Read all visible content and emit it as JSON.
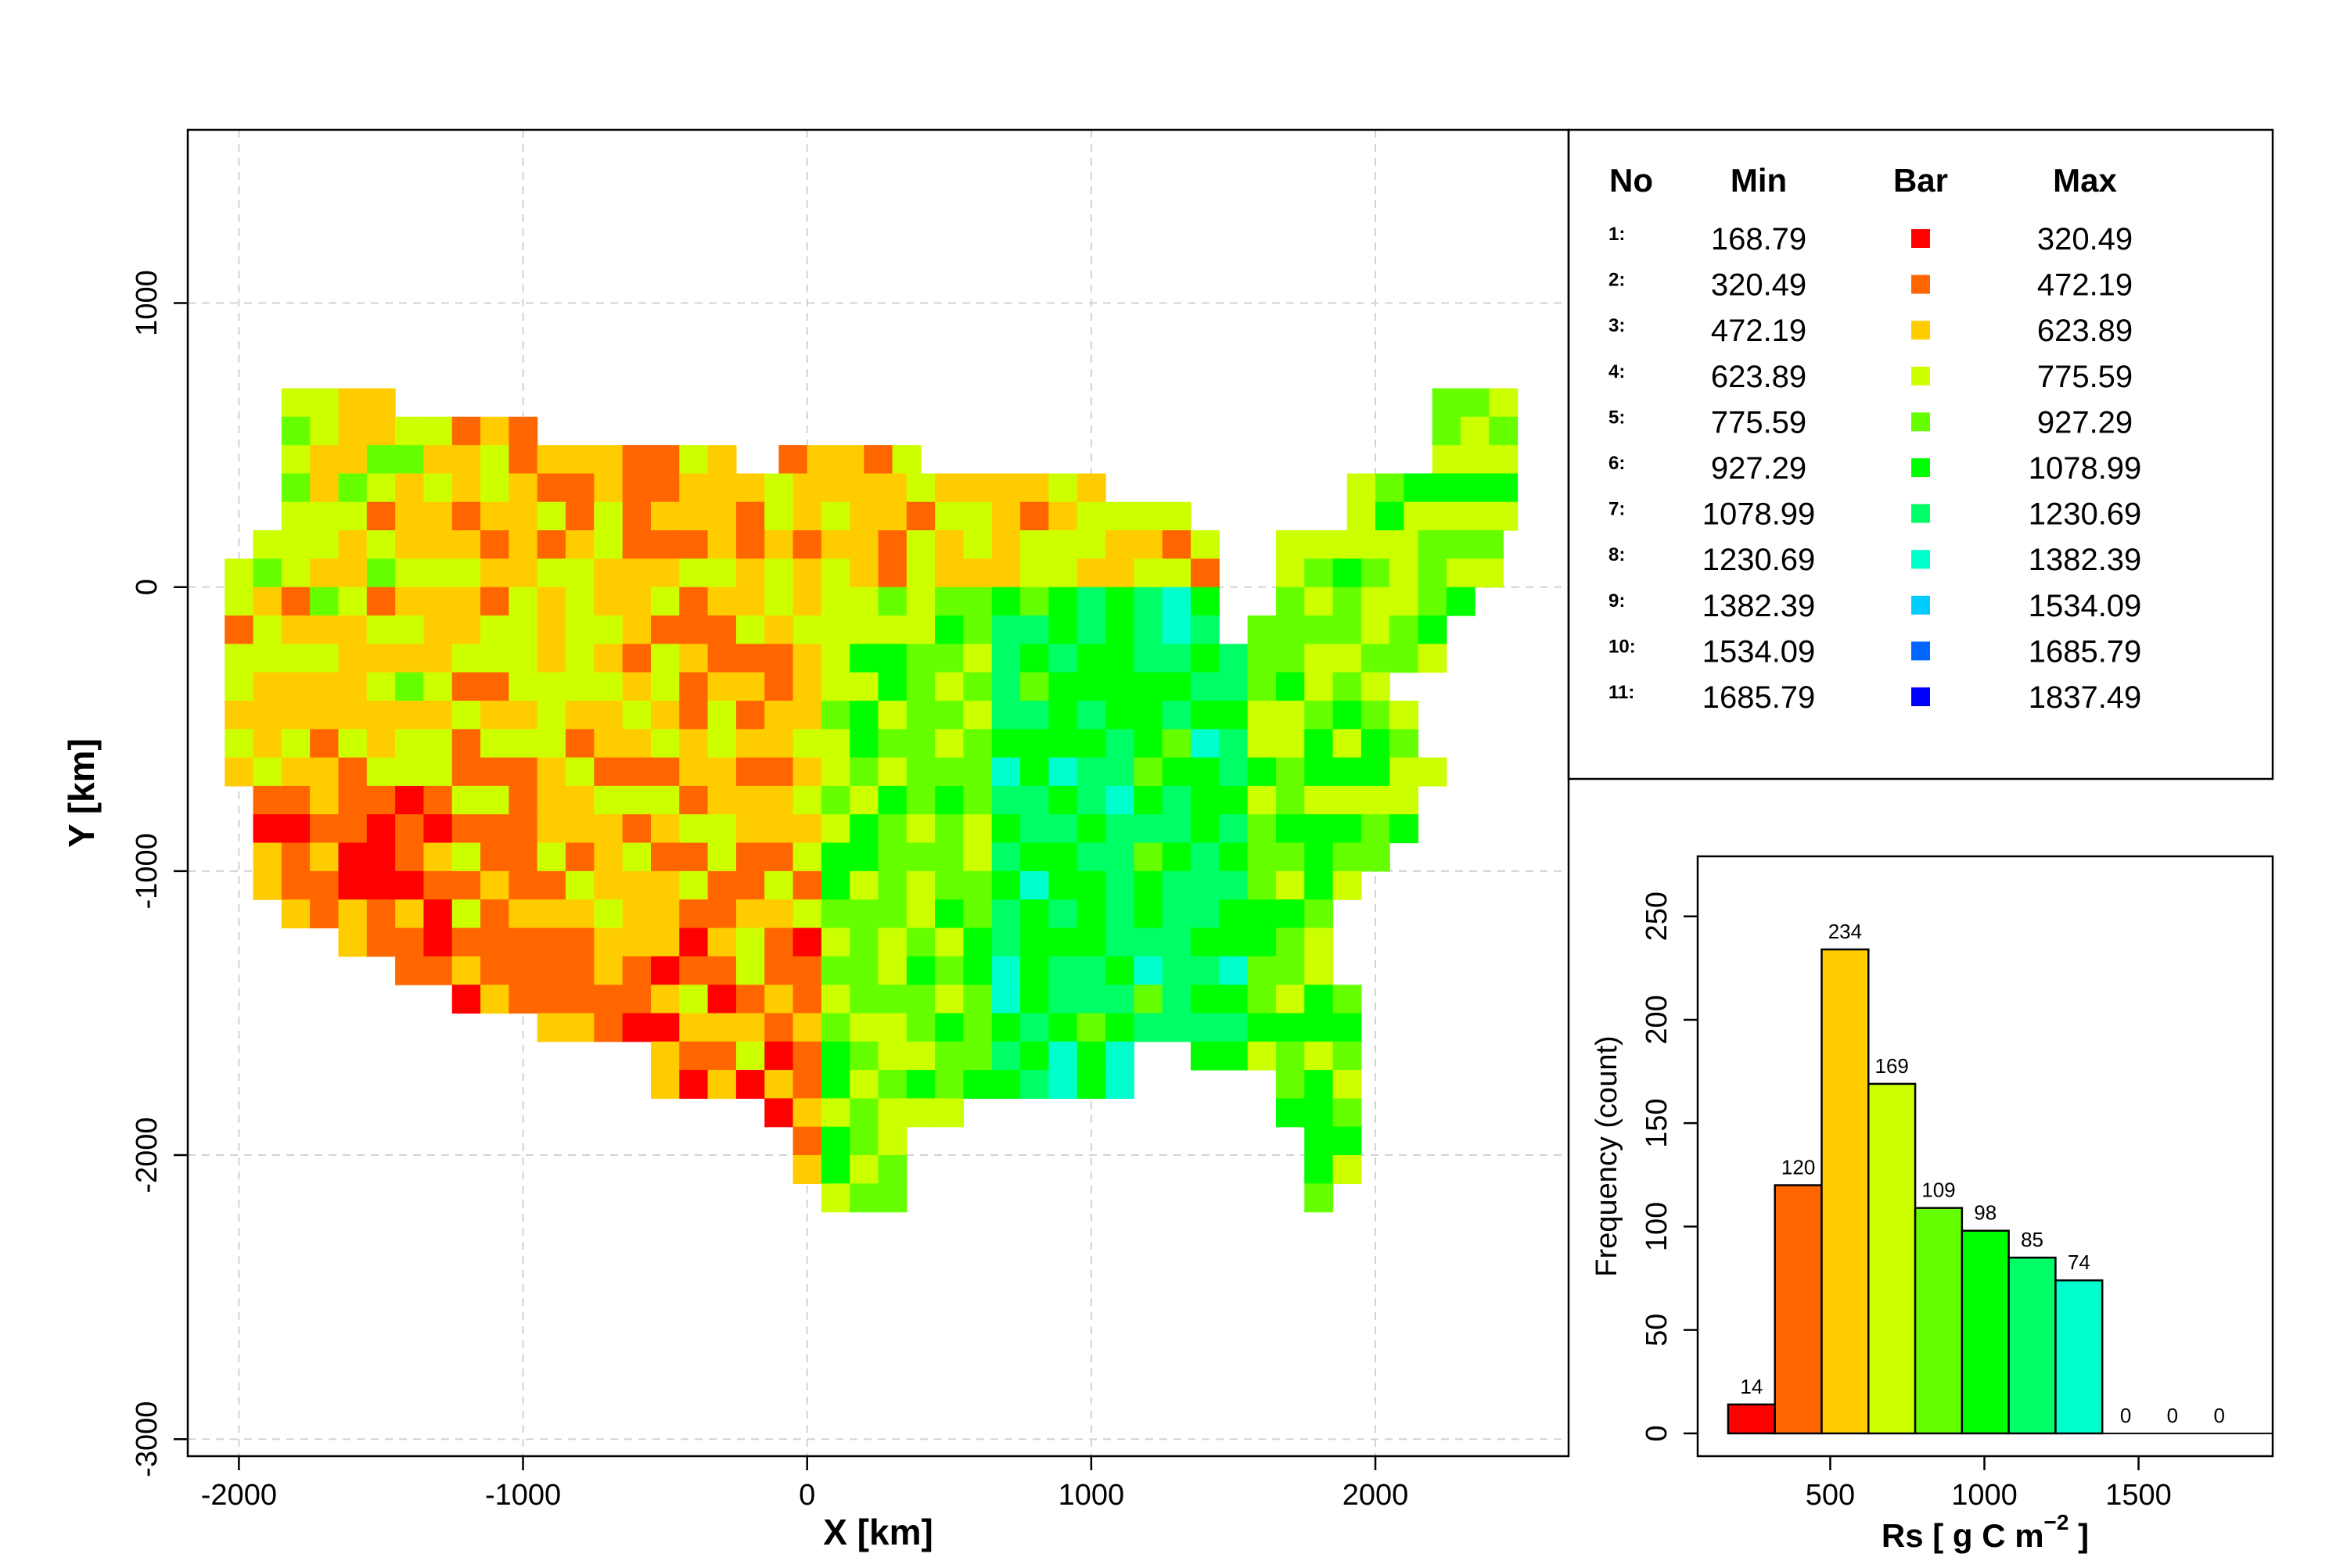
{
  "chart_data": [
    {
      "type": "heatmap",
      "title": "",
      "xlabel": "X [km]",
      "ylabel": "Y [km]",
      "xlim": [
        -2180,
        2680
      ],
      "ylim": [
        -3060,
        1610
      ],
      "xticks": [
        -2000,
        -1000,
        0,
        1000,
        2000
      ],
      "yticks": [
        -3000,
        -2000,
        -1000,
        0,
        1000
      ],
      "xtick_labels": [
        "-2000",
        "-1000",
        "0",
        "1000",
        "2000"
      ],
      "ytick_labels": [
        "-3000",
        "-2000",
        "-1000",
        "0",
        "1000"
      ],
      "grid": true,
      "cell_size_km": 100,
      "cell_grid_origin": {
        "x": -2000,
        "y": 700
      },
      "class_colors": [
        "#FF0000",
        "#FF6600",
        "#FFCC00",
        "#CCFF00",
        "#66FF00",
        "#00FF00",
        "#00FF66",
        "#00FFCC",
        "#00CCFF",
        "#0066FF",
        "#0000FF"
      ],
      "cells": [
        "............................................................",
        "........................................................",
        ".23322..............................................................................2333",
        ".434432222222222...........................................................................",
        "...2425554422222332..........................................................................",
        "...23545522222332222221233131121222222222222221111121333322222222222222333333333333333333333333333",
        "...5444543322222322223223222221222222222222222222222222222222222222222222222222222222222222222222"
      ],
      "map_cells": [
        "R0C2:4,R0C3:4,R0C4:5,R0C5:5,R0C6:4,R0C42:4,R0C43:3,R0C44:2",
        "R1C2:4,R1C3:5,R1C4:3,R1C5:3,R1C6:3,R1C7:3,R1C8:3,R1C9:3,R1C10:3,R1C11:4,R1C41:4,R1C42:4,R1C43:4,R1C44:3,R1C45:3",
        "R2C2:3,R2C3:6,R2C4:2,R2C5:4,R2C6:4,R2C7:3,R2C8:3,R2C9:3,R2C10:3,R2C11:3,R2C12:3,R2C13:4,R2C14:3,R2C15:2,R2C16:2,R2C17:3,R2C18:4,R2C19:2,R2C20:3,R2C21:4,R2C22:2,R2C23:2,R2C24:2,R2C25:3,R2C26:4,R2C27:4,R2C28:5,R2C41:5,R2C42:4,R2C43:4,R2C44:4,R2C45:4",
        "R3C2:4,R3C3:6,R3C4:5,R3C5:5,R3C6:4,R3C7:4,R3C8:4,R3C9:3,R3C10:4,R3C11:3,R3C12:3,R3C13:3,R3C14:3,R3C15:3,R3C16:4,R3C17:3,R3C18:3,R3C19:3,R3C20:2,R3C21:3,R3C22:3,R3C23:2,R3C24:3,R3C25:4,R3C26:3,R3C27:2,R3C28:3,R3C29:4,R3C30:3,R3C31:3,R3C32:2,R3C33:2,R3C40:4,R3C41:2,R3C42:6,R3C43:4,R3C44:4,R3C45:4",
        "R4C2:8,R4C3:5,R4C4:5,R4C5:4,R4C6:4,R4C7:2,R4C8:4,R4C9:3,R4C10:5,R4C11:3,R4C12:3,R4C13:2,R4C14:3,R4C15:3,R4C16:3,R4C17:3,R4C18:3,R4C19:3,R4C20:3,R4C21:4,R4C22:3,R4C23:4,R4C24:3,R4C25:3,R4C26:3,R4C27:3,R4C28:4,R4C29:3,R4C30:3,R4C31:3,R4C32:3,R4C33:3,R4C34:4,R4C35:4,R4C39:4,R4C40:5,R4C41:3,R4C42:5,R4C43:3,R4C44:7",
        "R5C1:5,R5C2:5,R5C3:5,R5C4:4,R5C5:4,R5C6:2,R5C7:4,R5C8:3,R5C9:3,R5C10:3,R5C11:3,R5C12:2,R5C13:3,R5C14:3,R5C15:3,R5C16:3,R5C17:3,R5C18:3,R5C19:2,R5C20:3,R5C21:3,R5C22:3,R5C23:3,R5C24:3,R5C25:3,R5C26:3,R5C27:3,R5C28:3,R5C29:3,R5C30:2,R5C31:3,R5C32:3,R5C33:3,R5C34:4,R5C35:4,R5C36:3,R5C37:3,R5C39:5,R5C40:5,R5C41:5,R5C42:4,R5C43:4,R5C44:6",
        "R6C0:8,R6C1:4,R6C2:4,R6C3:4,R6C4:4,R6C5:4,R6C6:3,R6C7:3,R6C8:3,R6C9:4,R6C10:2,R6C11:3,R6C12:3,R6C13:3,R6C14:3,R6C15:3,R6C16:4,R6C17:3,R6C18:3,R6C19:2,R6C20:3,R6C21:3,R6C22:2,R6C23:2,R6C24:3,R6C25:3,R6C26:3,R6C27:3,R6C28:3,R6C29:3,R6C30:3,R6C31:4,R6C32:4,R6C33:4,R6C34:3,R6C35:3,R6C36:2,R6C37:3,R6C38:4,R6C39:5,R6C40:5,R6C41:5,R6C42:5,R6C43:5,R6C44:3",
        "R7C0:5,R7C1:5,R7C2:4,R7C3:3,R7C4:3,R7C5:3,R7C6:3,R7C7:3,R7C8:4,R7C9:4,R7C10:3,R7C11:3,R7C12:3,R7C13:2,R7C14:3,R7C15:3,R7C16:3,R7C17:3,R7C18:3,R7C19:3,R7C20:2,R7C21:3,R7C22:3,R7C23:3,R7C24:3,R7C25:3,R7C26:3,R7C27:3,R7C28:3,R7C29:3,R7C30:3,R7C31:3,R7C32:3,R7C33:3,R7C34:3,R7C35:3,R7C36:2,R7C37:3,R7C38:4,R7C39:5,R7C40:5,R7C41:5,R7C42:5,R7C43:8,R7C44:4",
        "R8C0:8,R8C1:5,R8C2:4,R8C3:4,R8C4:4,R8C5:4,R8C6:2,R8C7:3,R8C8:3,R8C9:3,R8C10:3,R8C11:4,R8C12:4,R8C13:4,R8C14:3,R8C15:3,R8C16:3,R8C17:3,R8C18:3,R8C19:3,R8C20:3,R8C21:3,R8C22:4,R8C23:3,R8C24:3,R8C25:3,R8C26:3,R8C27:3,R8C28:3,R8C29:3,R8C30:3,R8C31:3,R8C32:3,R8C33:3,R8C34:2,R8C35:3,R8C36:4,R8C37:4,R8C38:5,R8C39:5,R8C40:6,R8C41:5,R8C42:5,R8C43:5,R8C44:6"
      ],
      "x_axis_label_note": ""
    },
    {
      "type": "table",
      "columns": [
        "No",
        "Min",
        "Bar",
        "Max"
      ],
      "rows": [
        {
          "no": "1:",
          "min": "168.79",
          "max": "320.49",
          "color": "#FF0000"
        },
        {
          "no": "2:",
          "min": "320.49",
          "max": "472.19",
          "color": "#FF6600"
        },
        {
          "no": "3:",
          "min": "472.19",
          "max": "623.89",
          "color": "#FFCC00"
        },
        {
          "no": "4:",
          "min": "623.89",
          "max": "775.59",
          "color": "#CCFF00"
        },
        {
          "no": "5:",
          "min": "775.59",
          "max": "927.29",
          "color": "#66FF00"
        },
        {
          "no": "6:",
          "min": "927.29",
          "max": "1078.99",
          "color": "#00FF00"
        },
        {
          "no": "7:",
          "min": "1078.99",
          "max": "1230.69",
          "color": "#00FF66"
        },
        {
          "no": "8:",
          "min": "1230.69",
          "max": "1382.39",
          "color": "#00FFCC"
        },
        {
          "no": "9:",
          "min": "1382.39",
          "max": "1534.09",
          "color": "#00CCFF"
        },
        {
          "no": "10:",
          "min": "1534.09",
          "max": "1685.79",
          "color": "#0066FF"
        },
        {
          "no": "11:",
          "min": "1685.79",
          "max": "1837.49",
          "color": "#0000FF"
        }
      ]
    },
    {
      "type": "bar",
      "title": "",
      "xlabel": "Rs [ g C m",
      "xlabel_sup": "−2",
      "xlabel_end": " ]",
      "ylabel": "Frequency (count)",
      "xlim": [
        70,
        1935
      ],
      "ylim": [
        -11,
        279
      ],
      "xticks": [
        500,
        1000,
        1500
      ],
      "xtick_labels": [
        "500",
        "1000",
        "1500"
      ],
      "yticks": [
        0,
        50,
        100,
        150,
        200,
        250
      ],
      "ytick_labels": [
        "0",
        "50",
        "100",
        "150",
        "200",
        "250"
      ],
      "bins": [
        {
          "from": 168.79,
          "to": 320.49,
          "count": 14,
          "label": "14",
          "color": "#FF0000"
        },
        {
          "from": 320.49,
          "to": 472.19,
          "count": 120,
          "label": "120",
          "color": "#FF6600"
        },
        {
          "from": 472.19,
          "to": 623.89,
          "count": 234,
          "label": "234",
          "color": "#FFCC00"
        },
        {
          "from": 623.89,
          "to": 775.59,
          "count": 169,
          "label": "169",
          "color": "#CCFF00"
        },
        {
          "from": 775.59,
          "to": 927.29,
          "count": 109,
          "label": "109",
          "color": "#66FF00"
        },
        {
          "from": 927.29,
          "to": 1078.99,
          "count": 98,
          "label": "98",
          "color": "#00FF00"
        },
        {
          "from": 1078.99,
          "to": 1230.69,
          "count": 85,
          "label": "85",
          "color": "#00FF66"
        },
        {
          "from": 1230.69,
          "to": 1382.39,
          "count": 74,
          "label": "74",
          "color": "#00FFCC"
        },
        {
          "from": 1382.39,
          "to": 1534.09,
          "count": 0,
          "label": "0",
          "color": "#00CCFF"
        },
        {
          "from": 1534.09,
          "to": 1685.79,
          "count": 0,
          "label": "0",
          "color": "#0066FF"
        },
        {
          "from": 1685.79,
          "to": 1837.49,
          "count": 0,
          "label": "0",
          "color": "#0000FF"
        }
      ]
    }
  ]
}
